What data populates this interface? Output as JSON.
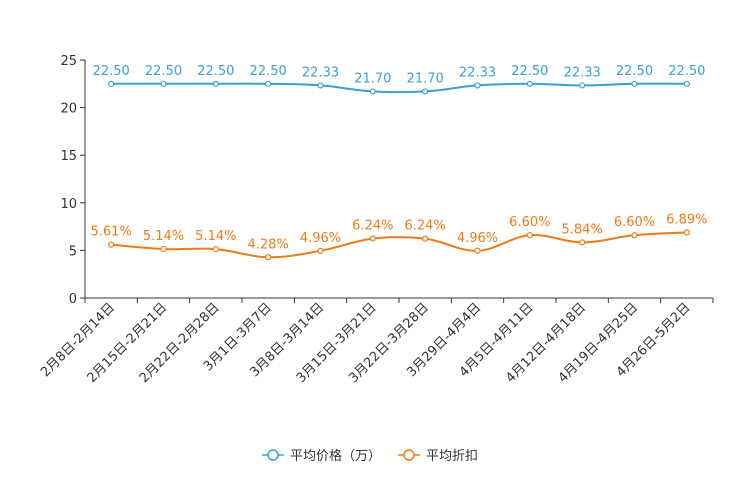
{
  "chart_data": {
    "type": "line",
    "title": "",
    "xlabel": "",
    "ylabel": "",
    "ylim": [
      0,
      25
    ],
    "yticks": [
      0,
      5,
      10,
      15,
      20,
      25
    ],
    "grid": false,
    "legend_position": "bottom-center",
    "categories": [
      "2月8日-2月14日",
      "2月15日-2月21日",
      "2月22日-2月28日",
      "3月1日-3月7日",
      "3月8日-3月14日",
      "3月15日-3月21日",
      "3月22日-3月28日",
      "3月29日-4月4日",
      "4月5日-4月11日",
      "4月12日-4月18日",
      "4月19日-4月25日",
      "4月26日-5月2日"
    ],
    "series": [
      {
        "name": "平均价格（万）",
        "color": "#3a9fd4",
        "values": [
          22.5,
          22.5,
          22.5,
          22.5,
          22.33,
          21.7,
          21.7,
          22.33,
          22.5,
          22.33,
          22.5,
          22.5
        ],
        "labels": [
          "22.50",
          "22.50",
          "22.50",
          "22.50",
          "22.33",
          "21.70",
          "21.70",
          "22.33",
          "22.50",
          "22.33",
          "22.50",
          "22.50"
        ]
      },
      {
        "name": "平均折扣",
        "color": "#f07a16",
        "values": [
          5.61,
          5.14,
          5.14,
          4.28,
          4.96,
          6.24,
          6.24,
          4.96,
          6.6,
          5.84,
          6.6,
          6.89
        ],
        "labels": [
          "5.61%",
          "5.14%",
          "5.14%",
          "4.28%",
          "4.96%",
          "6.24%",
          "6.24%",
          "4.96%",
          "6.60%",
          "5.84%",
          "6.60%",
          "6.89%"
        ]
      }
    ]
  }
}
